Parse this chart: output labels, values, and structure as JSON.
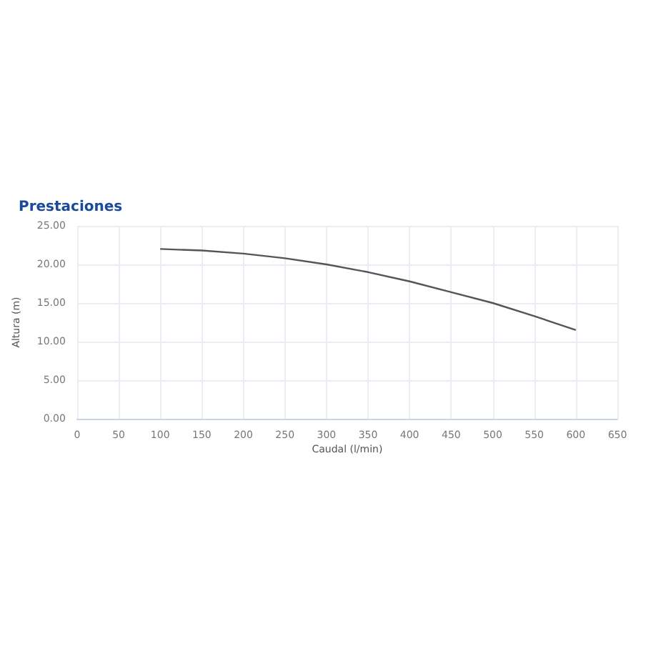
{
  "chart_data": {
    "type": "line",
    "title": "Prestaciones",
    "xlabel": "Caudal (l/min)",
    "ylabel": "Altura (m)",
    "x": [
      100,
      150,
      200,
      250,
      300,
      350,
      400,
      450,
      500,
      550,
      600
    ],
    "series": [
      {
        "color": "#555555",
        "values": [
          22,
          21.8,
          21.4,
          20.8,
          20,
          19,
          17.8,
          16.4,
          15,
          13.3,
          11.5
        ]
      }
    ],
    "xlim": [
      0,
      650
    ],
    "xticks": [
      0,
      50,
      100,
      150,
      200,
      250,
      300,
      350,
      400,
      450,
      500,
      550,
      600,
      650
    ],
    "ylim": [
      0,
      25
    ],
    "yticks": [
      {
        "value": 0,
        "label": "0.00"
      },
      {
        "value": 5,
        "label": "5.00"
      },
      {
        "value": 10,
        "label": "10.00"
      },
      {
        "value": 15,
        "label": "15.00"
      },
      {
        "value": 20,
        "label": "20.00"
      },
      {
        "value": 25,
        "label": "25.00"
      }
    ],
    "grid": true,
    "marker": "none",
    "line_style": "solid"
  }
}
